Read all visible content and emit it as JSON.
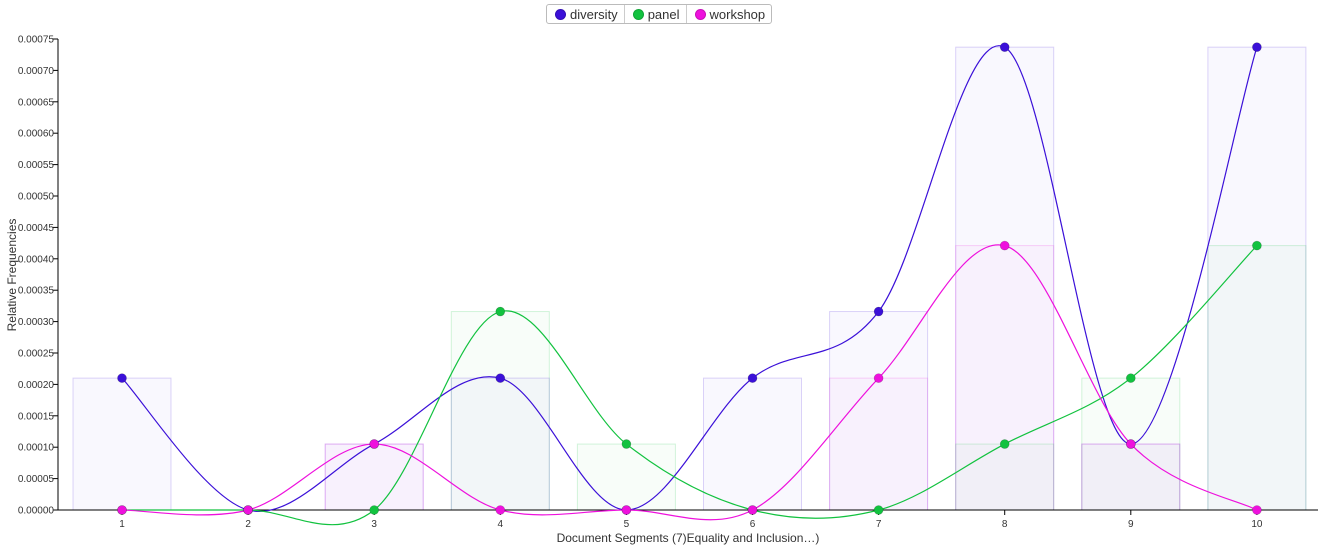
{
  "chart_data": {
    "type": "line",
    "xlabel": "Document Segments (7)Equality and Inclusion…)",
    "ylabel": "Relative Frequencies",
    "x": [
      1,
      2,
      3,
      4,
      5,
      6,
      7,
      8,
      9,
      10
    ],
    "ylim": [
      0,
      0.00075
    ],
    "y_ticks": [
      "0.00000",
      "0.00005",
      "0.00010",
      "0.00015",
      "0.00020",
      "0.00025",
      "0.00030",
      "0.00035",
      "0.00040",
      "0.00045",
      "0.00050",
      "0.00055",
      "0.00060",
      "0.00065",
      "0.00070",
      "0.00075"
    ],
    "legend_position": "top-center",
    "series": [
      {
        "name": "diversity",
        "color": "#3b10d8",
        "values": [
          0.00021,
          0.0,
          0.000105,
          0.00021,
          0.0,
          0.00021,
          0.000316,
          0.000737,
          0.000105,
          0.000737
        ]
      },
      {
        "name": "panel",
        "color": "#12c23f",
        "values": [
          0.0,
          0.0,
          0.0,
          0.000316,
          0.000105,
          0.0,
          0.0,
          0.000105,
          0.00021,
          0.000421
        ]
      },
      {
        "name": "workshop",
        "color": "#ee11dd",
        "values": [
          0.0,
          0.0,
          0.000105,
          0.0,
          0.0,
          0.0,
          0.00021,
          0.000421,
          0.000105,
          0.0
        ]
      }
    ]
  }
}
